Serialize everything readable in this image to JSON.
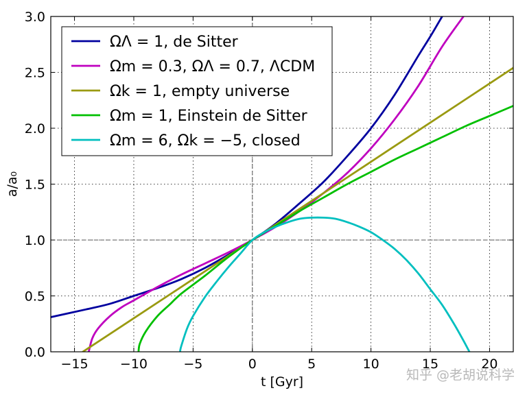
{
  "chart_data": {
    "type": "line",
    "xlabel": "t [Gyr]",
    "ylabel": "a/a₀",
    "xlim": [
      -17,
      22
    ],
    "ylim": [
      0,
      3
    ],
    "xticks": [
      -15,
      -10,
      -5,
      0,
      5,
      10,
      15,
      20
    ],
    "xtick_labels": [
      "−15",
      "−10",
      "−5",
      "0",
      "5",
      "10",
      "15",
      "20"
    ],
    "yticks": [
      0,
      0.5,
      1,
      1.5,
      2,
      2.5,
      3
    ],
    "ytick_labels": [
      "0.0",
      "0.5",
      "1.0",
      "1.5",
      "2.0",
      "2.5",
      "3.0"
    ],
    "grid": true,
    "grid_style": "dotted",
    "reference_lines": {
      "x": 0,
      "y": 1
    },
    "legend_position": "upper-left",
    "series": [
      {
        "name": "ΩΛ = 1,          de Sitter",
        "color": "#00009f",
        "x": [
          -17,
          -14,
          -12,
          -10,
          -8,
          -6,
          -4,
          -2,
          0,
          2,
          4,
          6,
          8,
          10,
          12,
          14,
          15,
          16
        ],
        "y": [
          0.31,
          0.38,
          0.43,
          0.5,
          0.57,
          0.65,
          0.75,
          0.87,
          1.0,
          1.15,
          1.33,
          1.52,
          1.75,
          2.0,
          2.3,
          2.65,
          2.82,
          3.0
        ]
      },
      {
        "name": "Ωm = 0.3, ΩΛ = 0.7, ΛCDM",
        "color": "#bf00bf",
        "x": [
          -13.8,
          -13.5,
          -13,
          -12,
          -11,
          -10,
          -8,
          -6,
          -4,
          -2,
          0,
          2,
          4,
          6,
          8,
          10,
          12,
          14,
          16,
          17.8
        ],
        "y": [
          0.0,
          0.12,
          0.21,
          0.32,
          0.4,
          0.46,
          0.58,
          0.69,
          0.79,
          0.89,
          1.0,
          1.12,
          1.26,
          1.42,
          1.6,
          1.82,
          2.08,
          2.38,
          2.73,
          3.0
        ]
      },
      {
        "name": "Ωk = 1,    empty universe",
        "color": "#9a9a11",
        "x": [
          -14.3,
          -10,
          -5,
          0,
          5,
          10,
          15,
          22
        ],
        "y": [
          0.0,
          0.3,
          0.65,
          1.0,
          1.35,
          1.7,
          2.05,
          2.54
        ]
      },
      {
        "name": "Ωm = 1, Einstein de Sitter",
        "color": "#00bf00",
        "x": [
          -9.6,
          -9.5,
          -9,
          -8,
          -7,
          -6,
          -4,
          -2,
          0,
          2,
          4,
          6,
          8,
          10,
          12,
          14,
          16,
          18,
          20,
          22
        ],
        "y": [
          0.0,
          0.07,
          0.18,
          0.32,
          0.42,
          0.52,
          0.68,
          0.85,
          1.0,
          1.13,
          1.26,
          1.38,
          1.5,
          1.61,
          1.72,
          1.82,
          1.92,
          2.02,
          2.11,
          2.2
        ]
      },
      {
        "name": "Ωm = 6, Ωk = −5,    closed",
        "color": "#00bfbf",
        "x": [
          -6.1,
          -6,
          -5.5,
          -5,
          -4,
          -3,
          -2,
          -1,
          0,
          1,
          2,
          3,
          4,
          5,
          6,
          7,
          8,
          9,
          10,
          11,
          12,
          13,
          14,
          15,
          16,
          17,
          17.8,
          18.3
        ],
        "y": [
          0.0,
          0.05,
          0.21,
          0.32,
          0.49,
          0.63,
          0.76,
          0.88,
          1.0,
          1.07,
          1.12,
          1.16,
          1.19,
          1.2,
          1.2,
          1.19,
          1.16,
          1.12,
          1.07,
          1.0,
          0.92,
          0.82,
          0.7,
          0.56,
          0.42,
          0.25,
          0.1,
          0.0
        ]
      }
    ]
  },
  "watermark": "知乎 @老胡说科学"
}
